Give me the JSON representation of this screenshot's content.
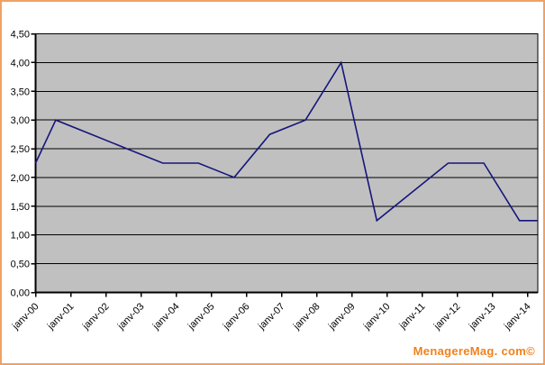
{
  "watermark": {
    "text": "MenagereMag. com©",
    "color": "#f0821c"
  },
  "frame": {
    "border_color": "#efa263",
    "background": "#ffffff"
  },
  "chart_data": {
    "type": "line",
    "title": "",
    "xlabel": "",
    "ylabel": "",
    "categories": [
      "janv-00",
      "janv-01",
      "janv-02",
      "janv-03",
      "janv-04",
      "janv-05",
      "janv-06",
      "janv-07",
      "janv-08",
      "janv-09",
      "janv-10",
      "janv-11",
      "janv-12",
      "janv-13",
      "janv-14"
    ],
    "values": [
      2.25,
      3.0,
      2.75,
      2.5,
      2.25,
      2.25,
      2.0,
      2.75,
      3.0,
      4.0,
      1.25,
      1.75,
      2.25,
      2.25,
      1.25
    ],
    "ylim": [
      0,
      4.5
    ],
    "ytick_step": 0.5,
    "ytick_labels": [
      "4,50",
      "4,00",
      "3,50",
      "3,00",
      "2,50",
      "2,00",
      "1,50",
      "1,00",
      "0,50",
      "0,00"
    ],
    "grid": true,
    "legend_position": "none",
    "series_color": "#16167c",
    "plot_bg": "#c0c0c0",
    "gridline_color": "#000000",
    "axis_color": "#000000",
    "xlabel_rotation_deg": -45,
    "line_extends_to_plot_edges": true
  }
}
